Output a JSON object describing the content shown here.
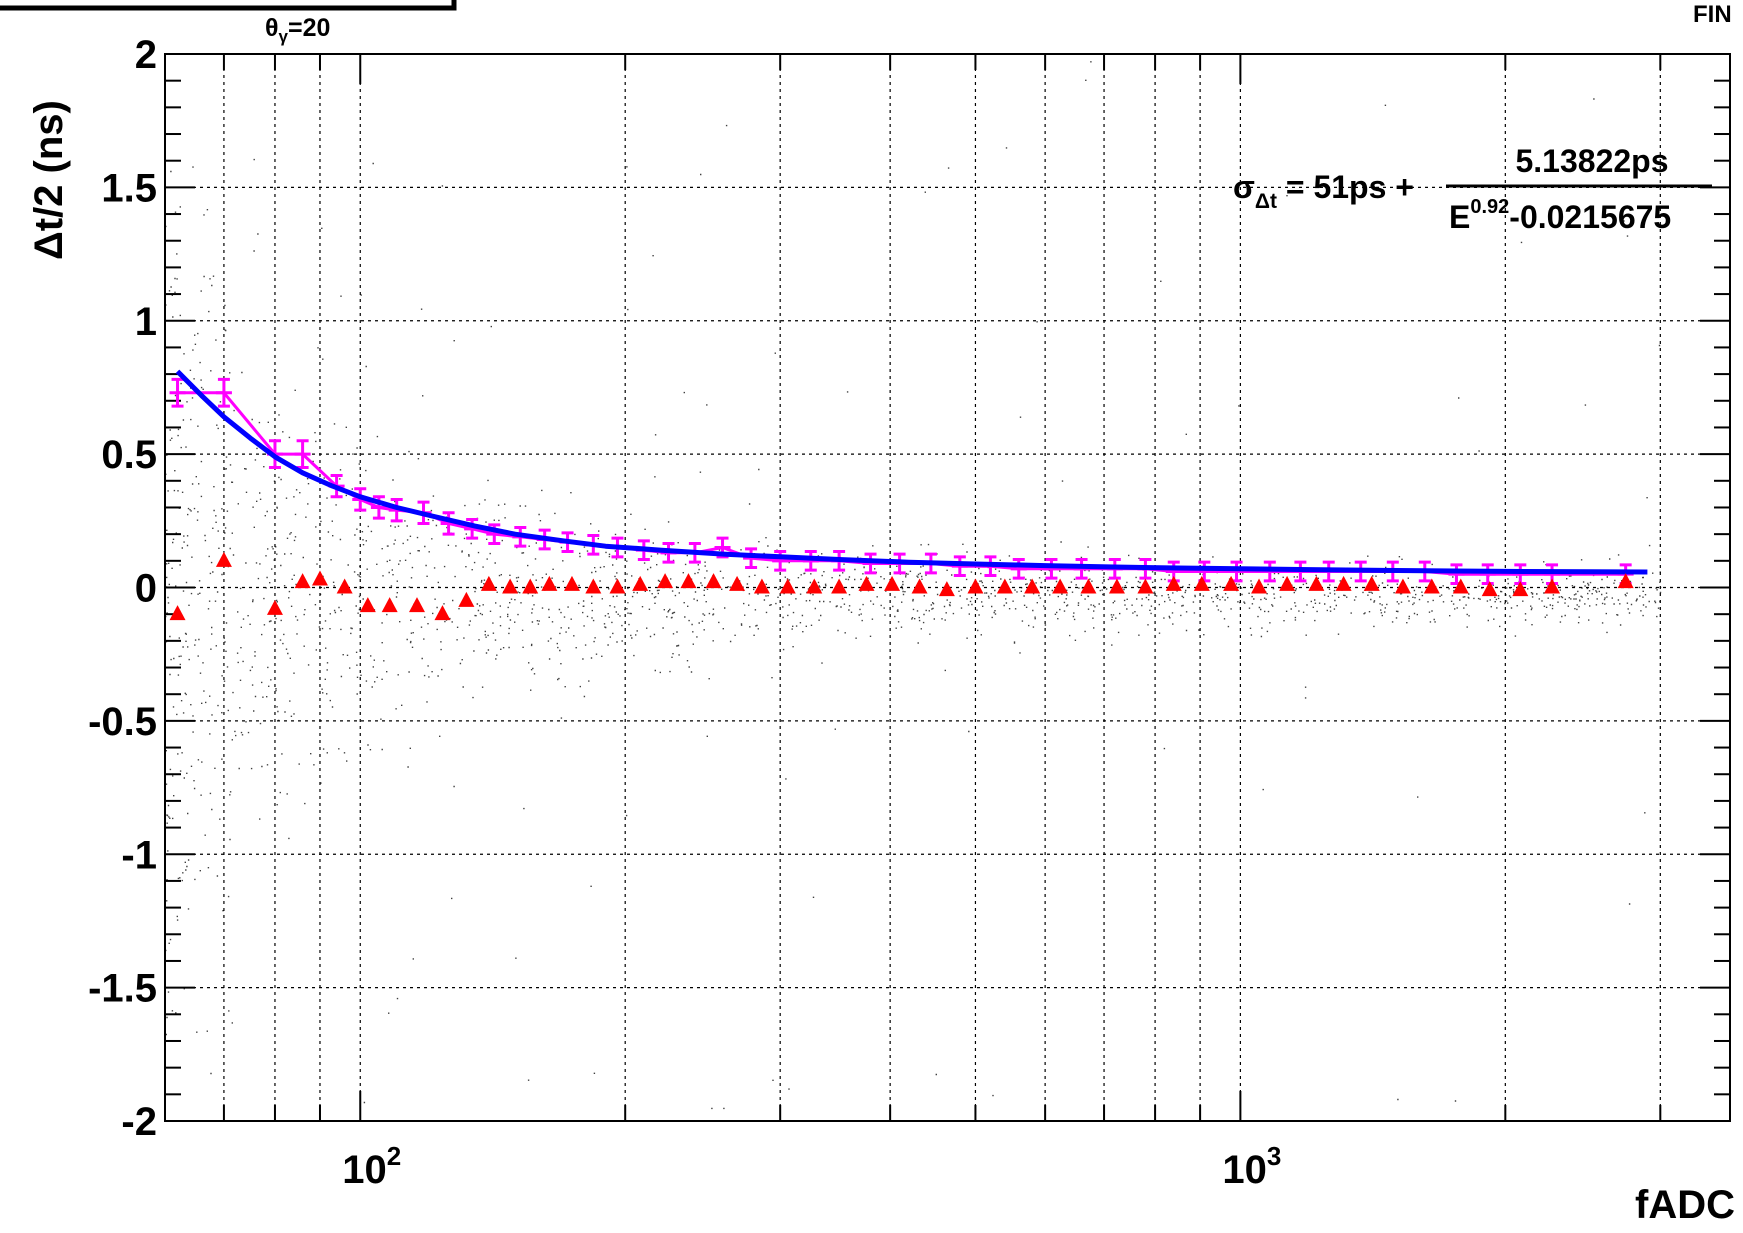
{
  "header": {
    "theta_prefix": "θ",
    "theta_sub": "γ",
    "theta_rest": "=20",
    "corner_text": "FIN"
  },
  "formula": {
    "sigma": "σ",
    "sigma_sub": "Δt",
    "lhs_rest": " = 51ps + ",
    "numerator": "5.13822ps",
    "denominator_base": "E",
    "denominator_exp": "0.92",
    "denominator_rest": "-0.0215675"
  },
  "chart_data": {
    "type": "scatter",
    "title": "",
    "xlabel": "fADC",
    "ylabel": "Δt/2 (ns)",
    "x_scale": "log",
    "xlim": [
      60,
      3600
    ],
    "ylim": [
      -2,
      2
    ],
    "grid": true,
    "y_ticks": [
      {
        "value": 2,
        "label": "2"
      },
      {
        "value": 1.5,
        "label": "1.5"
      },
      {
        "value": 1,
        "label": "1"
      },
      {
        "value": 0.5,
        "label": "0.5"
      },
      {
        "value": 0,
        "label": "0"
      },
      {
        "value": -0.5,
        "label": "-0.5"
      },
      {
        "value": -1,
        "label": "-1"
      },
      {
        "value": -1.5,
        "label": "-1.5"
      },
      {
        "value": -2,
        "label": "-2"
      }
    ],
    "x_major_ticks": [
      {
        "value": 100,
        "base": "10",
        "exp": "2"
      },
      {
        "value": 1000,
        "base": "10",
        "exp": "3"
      }
    ],
    "colors": {
      "sigma_points": "#ff00ff",
      "mean_points": "#ff0000",
      "fit_curve": "#0000ff",
      "scatter": "#000000"
    },
    "sigma_series": {
      "x": [
        62,
        70,
        80,
        86,
        94,
        100,
        105,
        110,
        118,
        126,
        134,
        142,
        152,
        162,
        172,
        184,
        196,
        210,
        224,
        240,
        258,
        278,
        300,
        325,
        350,
        380,
        410,
        445,
        480,
        520,
        560,
        610,
        660,
        720,
        780,
        840,
        910,
        990,
        1080,
        1170,
        1260,
        1370,
        1490,
        1620,
        1760,
        1910,
        2080,
        2260,
        2740
      ],
      "y": [
        0.73,
        0.73,
        0.5,
        0.5,
        0.38,
        0.33,
        0.3,
        0.29,
        0.28,
        0.24,
        0.22,
        0.2,
        0.19,
        0.18,
        0.17,
        0.16,
        0.15,
        0.14,
        0.13,
        0.13,
        0.15,
        0.11,
        0.1,
        0.1,
        0.1,
        0.09,
        0.09,
        0.09,
        0.08,
        0.08,
        0.07,
        0.07,
        0.07,
        0.07,
        0.07,
        0.06,
        0.06,
        0.06,
        0.06,
        0.06,
        0.06,
        0.06,
        0.06,
        0.06,
        0.05,
        0.05,
        0.05,
        0.05,
        0.05
      ],
      "err": [
        0.05,
        0.05,
        0.05,
        0.05,
        0.04,
        0.04,
        0.04,
        0.04,
        0.04,
        0.04,
        0.035,
        0.035,
        0.035,
        0.035,
        0.035,
        0.035,
        0.035,
        0.035,
        0.035,
        0.035,
        0.035,
        0.035,
        0.035,
        0.035,
        0.035,
        0.035,
        0.035,
        0.035,
        0.035,
        0.035,
        0.035,
        0.035,
        0.035,
        0.035,
        0.035,
        0.035,
        0.035,
        0.035,
        0.035,
        0.035,
        0.035,
        0.035,
        0.035,
        0.035,
        0.035,
        0.035,
        0.035,
        0.035,
        0.035
      ]
    },
    "mean_series": {
      "x": [
        62,
        70,
        80,
        86,
        90,
        96,
        102,
        108,
        116,
        124,
        132,
        140,
        148,
        156,
        164,
        174,
        184,
        196,
        208,
        222,
        236,
        252,
        268,
        286,
        306,
        328,
        350,
        376,
        402,
        432,
        464,
        500,
        540,
        580,
        624,
        672,
        724,
        780,
        840,
        904,
        976,
        1050,
        1130,
        1220,
        1310,
        1410,
        1530,
        1650,
        1780,
        1920,
        2080,
        2260,
        2740
      ],
      "y": [
        -0.1,
        0.1,
        -0.08,
        0.02,
        0.03,
        0.0,
        -0.07,
        -0.07,
        -0.07,
        -0.1,
        -0.05,
        0.01,
        0.0,
        0.0,
        0.01,
        0.01,
        0.0,
        0.0,
        0.01,
        0.02,
        0.02,
        0.02,
        0.01,
        0.0,
        0.0,
        0.0,
        0.0,
        0.01,
        0.01,
        0.0,
        -0.01,
        0.0,
        0.0,
        0.0,
        0.0,
        0.0,
        0.0,
        0.0,
        0.01,
        0.01,
        0.01,
        0.0,
        0.01,
        0.01,
        0.01,
        0.01,
        0.0,
        0.0,
        0.0,
        -0.01,
        -0.01,
        0.0,
        0.02
      ]
    },
    "fit_curve": {
      "label": "σΔt = 51ps + 5.13822ps / (E^0.92 - 0.0215675)",
      "x": [
        62,
        66,
        70,
        75,
        80,
        86,
        93,
        100,
        110,
        120,
        135,
        150,
        170,
        190,
        220,
        260,
        300,
        350,
        420,
        500,
        600,
        720,
        850,
        1000,
        1200,
        1450,
        1750,
        2100,
        2500,
        2900
      ],
      "y": [
        0.81,
        0.72,
        0.64,
        0.56,
        0.49,
        0.43,
        0.38,
        0.34,
        0.3,
        0.27,
        0.23,
        0.2,
        0.175,
        0.155,
        0.14,
        0.125,
        0.115,
        0.105,
        0.095,
        0.088,
        0.082,
        0.077,
        0.073,
        0.07,
        0.067,
        0.064,
        0.062,
        0.06,
        0.059,
        0.058
      ]
    }
  }
}
